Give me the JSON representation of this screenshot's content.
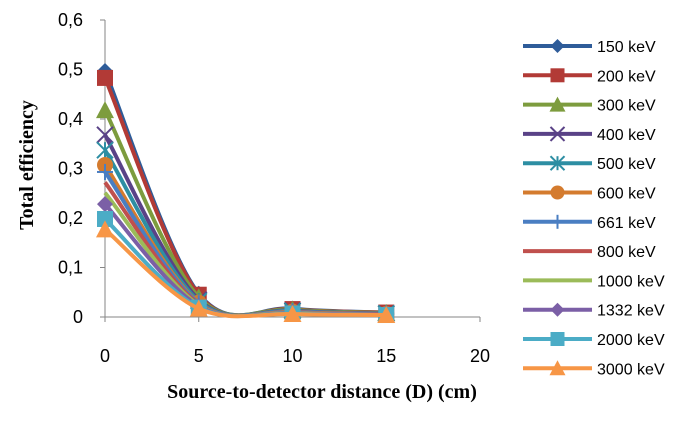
{
  "chart_data": {
    "type": "line",
    "xlabel": "Source-to-detector distance (D) (cm)",
    "ylabel": "Total efficiency",
    "xlim": [
      0,
      20
    ],
    "ylim": [
      0,
      0.6
    ],
    "x_ticks": [
      "0",
      "5",
      "10",
      "15",
      "20"
    ],
    "y_ticks": [
      "0",
      "0,1",
      "0,2",
      "0,3",
      "0,4",
      "0,5",
      "0,6"
    ],
    "grid": false,
    "legend_position": "right",
    "x": [
      0,
      5,
      10,
      15
    ],
    "series": [
      {
        "name": "150 keV",
        "color": "#2e5c99",
        "marker": "diamond",
        "values": [
          0.497,
          0.047,
          0.017,
          0.009
        ]
      },
      {
        "name": "200 keV",
        "color": "#b23a36",
        "marker": "square",
        "values": [
          0.483,
          0.045,
          0.016,
          0.009
        ]
      },
      {
        "name": "300 keV",
        "color": "#7d9c3e",
        "marker": "triangle",
        "values": [
          0.418,
          0.04,
          0.015,
          0.008
        ]
      },
      {
        "name": "400 keV",
        "color": "#5a4287",
        "marker": "x",
        "values": [
          0.368,
          0.035,
          0.013,
          0.007
        ]
      },
      {
        "name": "500 keV",
        "color": "#2d8ea3",
        "marker": "asterisk",
        "values": [
          0.337,
          0.032,
          0.012,
          0.007
        ]
      },
      {
        "name": "600 keV",
        "color": "#d47b2e",
        "marker": "circle",
        "values": [
          0.307,
          0.029,
          0.011,
          0.006
        ]
      },
      {
        "name": "661 keV",
        "color": "#4a7ec2",
        "marker": "plus",
        "values": [
          0.293,
          0.028,
          0.011,
          0.006
        ]
      },
      {
        "name": "800 keV",
        "color": "#c0504d",
        "marker": "none",
        "values": [
          0.272,
          0.026,
          0.01,
          0.006
        ]
      },
      {
        "name": "1000 keV",
        "color": "#9bbb59",
        "marker": "none",
        "values": [
          0.251,
          0.024,
          0.009,
          0.005
        ]
      },
      {
        "name": "1332 keV",
        "color": "#7b5fa6",
        "marker": "diamond",
        "values": [
          0.228,
          0.022,
          0.008,
          0.005
        ]
      },
      {
        "name": "2000 keV",
        "color": "#4bacc6",
        "marker": "square",
        "values": [
          0.198,
          0.019,
          0.007,
          0.004
        ]
      },
      {
        "name": "3000 keV",
        "color": "#f79646",
        "marker": "triangle",
        "values": [
          0.177,
          0.017,
          0.006,
          0.004
        ]
      }
    ]
  }
}
